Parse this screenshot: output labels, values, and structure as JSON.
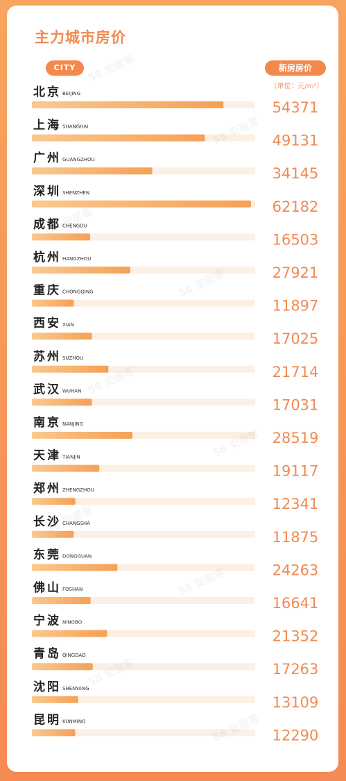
{
  "title": "主力城市房价",
  "header": {
    "city_label": "CITY",
    "price_label": "新房房价",
    "unit_label": "（单位：元/m²）"
  },
  "watermark": "58 安居客",
  "colors": {
    "accent": "#f4894d",
    "bar_start": "#f9c98f",
    "bar_end": "#f6a055",
    "track": "#fcefe4",
    "value": "#f08a52",
    "city": "#222222"
  },
  "chart_data": {
    "type": "bar",
    "title": "主力城市房价",
    "categories": [
      "北京",
      "上海",
      "广州",
      "深圳",
      "成都",
      "杭州",
      "重庆",
      "西安",
      "苏州",
      "武汉",
      "南京",
      "天津",
      "郑州",
      "长沙",
      "东莞",
      "佛山",
      "宁波",
      "青岛",
      "沈阳",
      "昆明"
    ],
    "categories_en": [
      "BEIJING",
      "SHANGHAI",
      "GUANGZHOU",
      "SHENZHEN",
      "CHENGDU",
      "HANGZHOU",
      "CHONGQING",
      "XIAN",
      "SUZHOU",
      "WUHAN",
      "NANJING",
      "TIANJIN",
      "ZHENGZHOU",
      "CHANGSHA",
      "DONGGUAN",
      "FOSHAN",
      "NINGBO",
      "QINGDAO",
      "SHENYANG",
      "KUNMING"
    ],
    "values": [
      54371,
      49131,
      34145,
      62182,
      16503,
      27921,
      11897,
      17025,
      21714,
      17031,
      28519,
      19117,
      12341,
      11875,
      24263,
      16641,
      21352,
      17263,
      13109,
      12290
    ],
    "value_labels": [
      "54371",
      "49131",
      "34145",
      "62182",
      "16503",
      "27921",
      "11897",
      "17025",
      "21714",
      "17031",
      "28519",
      "19117",
      "12341",
      "11875",
      "24263",
      "16641",
      "21352",
      "17263",
      "13109",
      "12290"
    ],
    "ylabel": "新房房价",
    "unit": "元/m²",
    "ylim": [
      0,
      75000
    ],
    "orientation": "horizontal"
  }
}
